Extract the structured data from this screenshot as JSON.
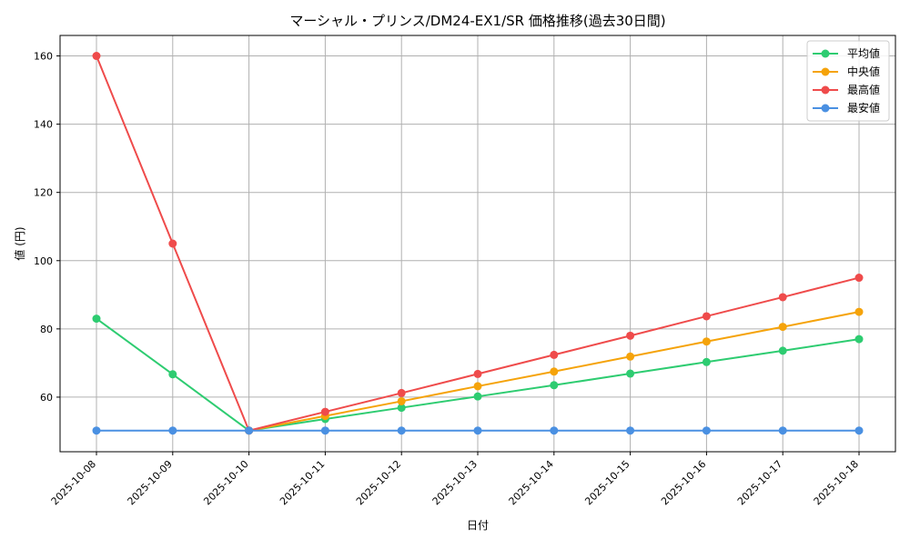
{
  "chart_data": {
    "type": "line",
    "title": "マーシャル・プリンス/DM24-EX1/SR 価格推移(過去30日間)",
    "xlabel": "日付",
    "ylabel": "値 (円)",
    "categories": [
      "2025-10-08",
      "2025-10-09",
      "2025-10-10",
      "2025-10-11",
      "2025-10-12",
      "2025-10-13",
      "2025-10-14",
      "2025-10-15",
      "2025-10-16",
      "2025-10-17",
      "2025-10-18"
    ],
    "ylim": [
      44,
      166
    ],
    "yticks": [
      60,
      80,
      100,
      120,
      140,
      160
    ],
    "grid": true,
    "legend_position": "top-right",
    "series": [
      {
        "name": "平均値",
        "color": "#2ecc71",
        "values": [
          83,
          66.7,
          50.2,
          53.6,
          56.9,
          60.2,
          63.5,
          66.9,
          70.3,
          73.6,
          77
        ]
      },
      {
        "name": "中央値",
        "color": "#f5a30a",
        "values": [
          null,
          null,
          50.2,
          54.5,
          58.8,
          63.2,
          67.5,
          71.9,
          76.3,
          80.6,
          85
        ]
      },
      {
        "name": "最高値",
        "color": "#ef4b4b",
        "values": [
          160,
          105,
          50.2,
          55.7,
          61.2,
          66.8,
          72.4,
          78,
          83.7,
          89.3,
          95
        ]
      },
      {
        "name": "最安値",
        "color": "#4a90e2",
        "values": [
          50.2,
          50.2,
          50.2,
          50.2,
          50.2,
          50.2,
          50.2,
          50.2,
          50.2,
          50.2,
          50.2
        ]
      }
    ]
  }
}
